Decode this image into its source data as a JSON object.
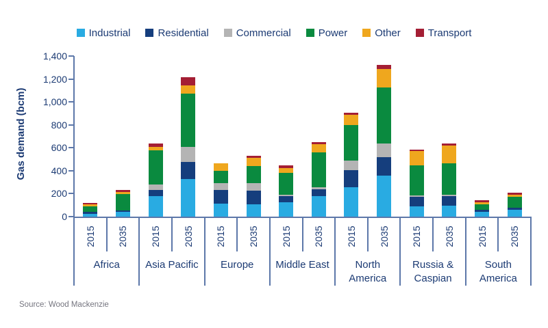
{
  "source": {
    "text": "Source: Wood Mackenzie"
  },
  "colors": {
    "text_navy": "#1B3A73",
    "axis_line": "#5C77A9",
    "source_gray": "#75757F",
    "background": "#FFFFFF"
  },
  "chart_data": {
    "type": "bar",
    "stacked": true,
    "title": "",
    "xlabel": "",
    "ylabel": "Gas demand (bcm)",
    "ylim": [
      0,
      1400
    ],
    "ytick_step": 200,
    "ytick_labels": [
      "0",
      "200",
      "400",
      "600",
      "800",
      "1,000",
      "1,200",
      "1,400"
    ],
    "grid": "off",
    "legend_position": "top",
    "series": [
      {
        "name": "Industrial",
        "color": "#29ABE2"
      },
      {
        "name": "Residential",
        "color": "#153E7D"
      },
      {
        "name": "Commercial",
        "color": "#B4B4B4"
      },
      {
        "name": "Power",
        "color": "#0A8A3F"
      },
      {
        "name": "Other",
        "color": "#EFA71E"
      },
      {
        "name": "Transport",
        "color": "#A41E34"
      }
    ],
    "year_labels": [
      "2015",
      "2035"
    ],
    "regions": [
      {
        "label": "Africa",
        "label_lines": [
          "Africa"
        ],
        "bars": [
          {
            "year": "2015",
            "values": [
              25,
              15,
              0,
              50,
              15,
              15
            ],
            "total": 120
          },
          {
            "year": "2035",
            "values": [
              40,
              15,
              0,
              140,
              20,
              15
            ],
            "total": 230
          }
        ]
      },
      {
        "label": "Asia Pacific",
        "label_lines": [
          "Asia Pacific"
        ],
        "bars": [
          {
            "year": "2015",
            "values": [
              180,
              55,
              45,
              295,
              30,
              35
            ],
            "total": 640
          },
          {
            "year": "2035",
            "values": [
              325,
              150,
              130,
              470,
              70,
              70
            ],
            "total": 1215
          }
        ]
      },
      {
        "label": "Europe",
        "label_lines": [
          "Europe"
        ],
        "bars": [
          {
            "year": "2015",
            "values": [
              115,
              115,
              60,
              110,
              65,
              0
            ],
            "total": 465
          },
          {
            "year": "2035",
            "values": [
              110,
              115,
              65,
              150,
              70,
              20
            ],
            "total": 530
          }
        ]
      },
      {
        "label": "Middle East",
        "label_lines": [
          "Middle East"
        ],
        "bars": [
          {
            "year": "2015",
            "values": [
              125,
              55,
              10,
              190,
              45,
              20
            ],
            "total": 445
          },
          {
            "year": "2035",
            "values": [
              180,
              60,
              15,
              305,
              70,
              20
            ],
            "total": 650
          }
        ]
      },
      {
        "label": "North America",
        "label_lines": [
          "North",
          "America"
        ],
        "bars": [
          {
            "year": "2015",
            "values": [
              255,
              150,
              85,
              310,
              85,
              20
            ],
            "total": 905
          },
          {
            "year": "2035",
            "values": [
              355,
              165,
              115,
              490,
              160,
              35
            ],
            "total": 1320
          }
        ]
      },
      {
        "label": "Russia & Caspian",
        "label_lines": [
          "Russia &",
          "Caspian"
        ],
        "bars": [
          {
            "year": "2015",
            "values": [
              90,
              85,
              10,
              260,
              125,
              15
            ],
            "total": 585
          },
          {
            "year": "2035",
            "values": [
              95,
              85,
              10,
              275,
              155,
              15
            ],
            "total": 635
          }
        ]
      },
      {
        "label": "South America",
        "label_lines": [
          "South",
          "America"
        ],
        "bars": [
          {
            "year": "2015",
            "values": [
              40,
              20,
              0,
              50,
              15,
              20
            ],
            "total": 145
          },
          {
            "year": "2035",
            "values": [
              60,
              20,
              0,
              90,
              20,
              20
            ],
            "total": 210
          }
        ]
      }
    ]
  }
}
